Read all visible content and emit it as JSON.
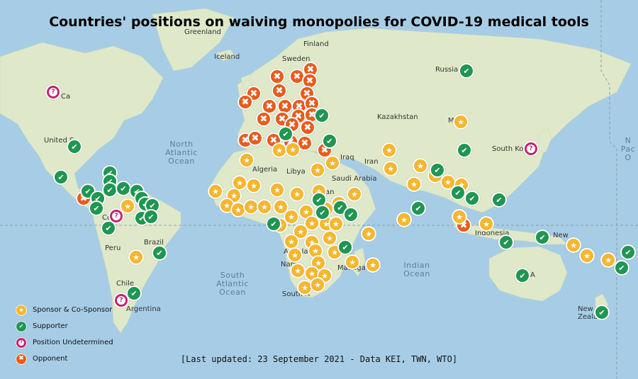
{
  "title": "Countries' positions on waiving monopolies for COVID-19 medical tools",
  "footnote": "[Last updated: 23 September 2021 - Data KEI, TWN, WTO]",
  "colors": {
    "ocean": "#a7cde6",
    "land": "#dfe9c9",
    "sponsor": "#f5b731",
    "supporter": "#1f9652",
    "undetermined": "#c1276e",
    "opponent": "#e85c1c"
  },
  "legend": [
    {
      "category": "sponsor",
      "label": "Sponsor & Co-Sponsor",
      "icon": "star-icon"
    },
    {
      "category": "supporter",
      "label": "Supporter",
      "icon": "check-icon"
    },
    {
      "category": "undetermined",
      "label": "Position Undetermined",
      "icon": "question-icon"
    },
    {
      "category": "opponent",
      "label": "Opponent",
      "icon": "cross-icon"
    }
  ],
  "map_labels": {
    "greenland": "Greenland",
    "iceland": "Iceland",
    "finland": "Finland",
    "sweden": "Sweden",
    "russia": "Russia",
    "kazakhstan": "Kazakhstan",
    "iraq": "Iraq",
    "iran": "Iran",
    "saudi_arabia": "Saudi Arabia",
    "algeria": "Algeria",
    "libya": "Libya",
    "sudan": "Sudan",
    "angola": "Angola",
    "namibia": "Nam",
    "south_africa": "South A",
    "madagascar": "Madaga",
    "canada": "Ca",
    "united_states": "United S",
    "peru": "Peru",
    "brazil": "Brazil",
    "chile": "Chile",
    "argentina": "Argentina",
    "south_korea": "South Kore",
    "indonesia": "Indonesia",
    "australia": "A",
    "new_zealand": "New Zealand",
    "new_guinea": "New",
    "colombia": "Co",
    "mongolia": "Mo"
  },
  "oceans": {
    "north_atlantic": "North Atlantic Ocean",
    "south_atlantic": "South Atlantic Ocean",
    "indian": "Indian Ocean",
    "north_pacific_right": "N Pac O"
  },
  "markers": {
    "sponsor": [
      [
        650,
        172
      ],
      [
        549,
        212
      ],
      [
        551,
        238
      ],
      [
        593,
        234
      ],
      [
        614,
        248
      ],
      [
        584,
        260
      ],
      [
        632,
        257
      ],
      [
        651,
        261
      ],
      [
        570,
        310
      ],
      [
        648,
        306
      ],
      [
        686,
        316
      ],
      [
        809,
        346
      ],
      [
        828,
        361
      ],
      [
        858,
        367
      ],
      [
        348,
        226
      ],
      [
        394,
        212
      ],
      [
        413,
        211
      ],
      [
        448,
        240
      ],
      [
        469,
        230
      ],
      [
        304,
        270
      ],
      [
        330,
        276
      ],
      [
        338,
        258
      ],
      [
        358,
        262
      ],
      [
        391,
        268
      ],
      [
        419,
        274
      ],
      [
        450,
        270
      ],
      [
        478,
        287
      ],
      [
        500,
        274
      ],
      [
        320,
        290
      ],
      [
        336,
        296
      ],
      [
        354,
        292
      ],
      [
        373,
        292
      ],
      [
        396,
        292
      ],
      [
        432,
        299
      ],
      [
        460,
        295
      ],
      [
        411,
        306
      ],
      [
        395,
        318
      ],
      [
        424,
        327
      ],
      [
        440,
        315
      ],
      [
        460,
        316
      ],
      [
        474,
        316
      ],
      [
        411,
        341
      ],
      [
        440,
        342
      ],
      [
        465,
        336
      ],
      [
        416,
        360
      ],
      [
        445,
        354
      ],
      [
        472,
        356
      ],
      [
        449,
        371
      ],
      [
        420,
        382
      ],
      [
        440,
        386
      ],
      [
        458,
        389
      ],
      [
        430,
        406
      ],
      [
        448,
        402
      ],
      [
        497,
        370
      ],
      [
        526,
        374
      ],
      [
        520,
        330
      ],
      [
        180,
        291
      ],
      [
        192,
        363
      ]
    ],
    "supporter": [
      [
        658,
        100
      ],
      [
        655,
        212
      ],
      [
        617,
        240
      ],
      [
        646,
        272
      ],
      [
        666,
        280
      ],
      [
        704,
        282
      ],
      [
        590,
        294
      ],
      [
        714,
        342
      ],
      [
        765,
        335
      ],
      [
        886,
        356
      ],
      [
        877,
        378
      ],
      [
        737,
        389
      ],
      [
        849,
        441
      ],
      [
        454,
        163
      ],
      [
        403,
        189
      ],
      [
        465,
        199
      ],
      [
        450,
        282
      ],
      [
        455,
        300
      ],
      [
        480,
        293
      ],
      [
        495,
        303
      ],
      [
        386,
        316
      ],
      [
        487,
        349
      ],
      [
        105,
        207
      ],
      [
        86,
        250
      ],
      [
        155,
        244
      ],
      [
        155,
        256
      ],
      [
        155,
        268
      ],
      [
        124,
        270
      ],
      [
        138,
        280
      ],
      [
        174,
        266
      ],
      [
        193,
        270
      ],
      [
        200,
        280
      ],
      [
        205,
        288
      ],
      [
        215,
        290
      ],
      [
        200,
        308
      ],
      [
        213,
        306
      ],
      [
        136,
        294
      ],
      [
        153,
        322
      ],
      [
        225,
        357
      ],
      [
        189,
        414
      ]
    ],
    "undetermined": [
      [
        75,
        130
      ],
      [
        749,
        210
      ],
      [
        164,
        305
      ],
      [
        171,
        424
      ]
    ],
    "opponent": [
      [
        391,
        108
      ],
      [
        419,
        108
      ],
      [
        438,
        98
      ],
      [
        437,
        114
      ],
      [
        358,
        132
      ],
      [
        394,
        128
      ],
      [
        433,
        132
      ],
      [
        346,
        144
      ],
      [
        380,
        150
      ],
      [
        402,
        150
      ],
      [
        422,
        150
      ],
      [
        440,
        146
      ],
      [
        372,
        168
      ],
      [
        398,
        168
      ],
      [
        421,
        164
      ],
      [
        440,
        162
      ],
      [
        412,
        176
      ],
      [
        434,
        180
      ],
      [
        346,
        198
      ],
      [
        360,
        195
      ],
      [
        386,
        198
      ],
      [
        410,
        200
      ],
      [
        430,
        202
      ],
      [
        458,
        212
      ],
      [
        118,
        280
      ],
      [
        654,
        318
      ]
    ]
  }
}
